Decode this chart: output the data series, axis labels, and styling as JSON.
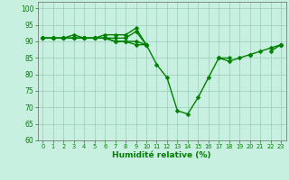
{
  "x": [
    0,
    1,
    2,
    3,
    4,
    5,
    6,
    7,
    8,
    9,
    10,
    11,
    12,
    13,
    14,
    15,
    16,
    17,
    18,
    19,
    20,
    21,
    22,
    23
  ],
  "line1": [
    91,
    91,
    91,
    92,
    91,
    91,
    92,
    92,
    92,
    94,
    89,
    83,
    79,
    69,
    68,
    73,
    79,
    85,
    84,
    85,
    86,
    87,
    88,
    89
  ],
  "line2": [
    91,
    91,
    91,
    91,
    91,
    91,
    91,
    91,
    91,
    93,
    89,
    null,
    null,
    null,
    null,
    null,
    null,
    85,
    85,
    null,
    86,
    null,
    87,
    89
  ],
  "line3": [
    91,
    91,
    91,
    91,
    91,
    91,
    91,
    90,
    90,
    90,
    89,
    null,
    null,
    null,
    null,
    null,
    null,
    null,
    null,
    null,
    null,
    null,
    null,
    89
  ],
  "line4": [
    91,
    91,
    91,
    91,
    91,
    91,
    91,
    90,
    90,
    89,
    89,
    null,
    null,
    null,
    null,
    null,
    null,
    null,
    null,
    null,
    null,
    null,
    null,
    89
  ],
  "xlabel": "Humidité relative (%)",
  "ylim": [
    60,
    102
  ],
  "xlim": [
    -0.5,
    23.5
  ],
  "yticks": [
    60,
    65,
    70,
    75,
    80,
    85,
    90,
    95,
    100
  ],
  "xticks": [
    0,
    1,
    2,
    3,
    4,
    5,
    6,
    7,
    8,
    9,
    10,
    11,
    12,
    13,
    14,
    15,
    16,
    17,
    18,
    19,
    20,
    21,
    22,
    23
  ],
  "line_color": "#008000",
  "tick_color": "#008000",
  "label_color": "#008000",
  "bg_color": "#c8f0e0",
  "grid_color": "#99ccbb",
  "marker": "D",
  "marker_size": 2.5,
  "linewidth": 1.0,
  "xtick_fontsize": 4.8,
  "ytick_fontsize": 5.5,
  "xlabel_fontsize": 6.5
}
